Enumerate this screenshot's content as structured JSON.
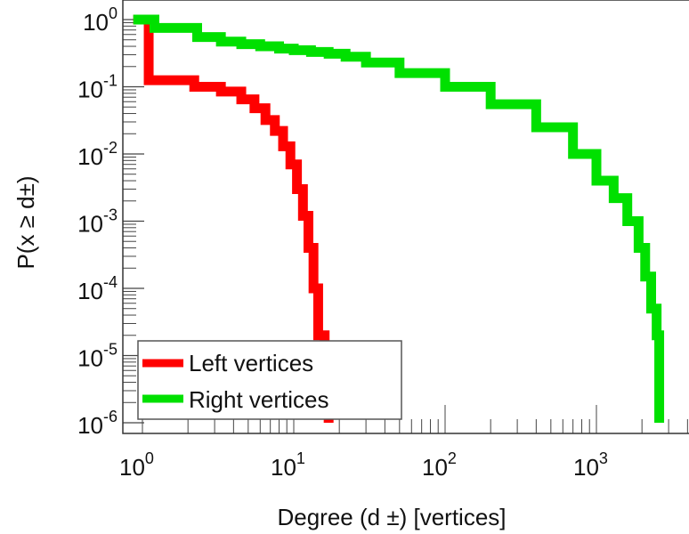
{
  "chart_data": {
    "type": "line",
    "title": "",
    "xlabel": "Degree (d ±) [vertices]",
    "ylabel": "P(x ≥ d±)",
    "xscale": "log",
    "yscale": "log",
    "xlim": [
      0.87,
      5000
    ],
    "ylim": [
      1e-06,
      1
    ],
    "x_ticks": [
      {
        "v": 1,
        "base": "10",
        "exp": "0"
      },
      {
        "v": 10,
        "base": "10",
        "exp": "1"
      },
      {
        "v": 100,
        "base": "10",
        "exp": "2"
      },
      {
        "v": 1000,
        "base": "10",
        "exp": "3"
      }
    ],
    "y_ticks": [
      {
        "v": 1,
        "base": "10",
        "exp": "0"
      },
      {
        "v": 0.1,
        "base": "10",
        "exp": "-1"
      },
      {
        "v": 0.01,
        "base": "10",
        "exp": "-2"
      },
      {
        "v": 0.001,
        "base": "10",
        "exp": "-3"
      },
      {
        "v": 0.0001,
        "base": "10",
        "exp": "-4"
      },
      {
        "v": 1e-05,
        "base": "10",
        "exp": "-5"
      },
      {
        "v": 1e-06,
        "base": "10",
        "exp": "-6"
      }
    ],
    "legend_position": "bottom-left",
    "series": [
      {
        "name": "Left vertices",
        "color": "#ff0000",
        "x": [
          0.87,
          1.1,
          2.2,
          3.3,
          4.5,
          5.5,
          6.5,
          7.5,
          8.5,
          9.5,
          10.5,
          11.5,
          12.5,
          13.5,
          14.5,
          16,
          17
        ],
        "y": [
          1,
          0.125,
          0.1,
          0.085,
          0.065,
          0.048,
          0.032,
          0.022,
          0.013,
          0.007,
          0.003,
          0.0012,
          0.0004,
          0.0001,
          2e-05,
          4e-06,
          1e-06
        ]
      },
      {
        "name": "Right vertices",
        "color": "#00e000",
        "x": [
          0.87,
          1.2,
          2.3,
          3.3,
          4.5,
          6,
          8,
          10,
          13,
          17,
          22,
          30,
          50,
          100,
          200,
          400,
          700,
          1000,
          1300,
          1600,
          1900,
          2100,
          2300,
          2500,
          2600,
          2600
        ],
        "y": [
          1,
          0.75,
          0.55,
          0.47,
          0.43,
          0.4,
          0.37,
          0.35,
          0.33,
          0.31,
          0.28,
          0.23,
          0.16,
          0.1,
          0.055,
          0.025,
          0.01,
          0.004,
          0.0022,
          0.001,
          0.0004,
          0.00015,
          5e-05,
          2e-05,
          1e-05,
          1e-06
        ]
      }
    ]
  }
}
